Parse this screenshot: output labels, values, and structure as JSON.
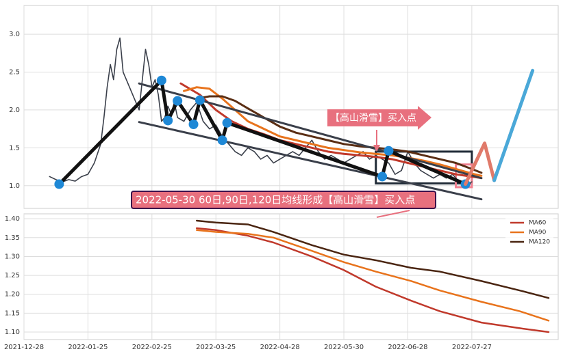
{
  "chart_data": [
    {
      "type": "line",
      "ylim": [
        0.7,
        3.38
      ],
      "yticks": [
        {
          "value": 1.0,
          "label": "1.0"
        },
        {
          "value": 1.5,
          "label": "1.5"
        },
        {
          "value": 2.0,
          "label": "2.0"
        },
        {
          "value": 2.5,
          "label": "2.5"
        },
        {
          "value": 3.0,
          "label": "3.0"
        }
      ],
      "grid": true,
      "series": [
        {
          "color": "#3a3f4a",
          "width": 1.6,
          "x": [
            8,
            10,
            12,
            14,
            16,
            18,
            20,
            22,
            24,
            25,
            26,
            27,
            28,
            29,
            30,
            31,
            32,
            33,
            34,
            36,
            37,
            38,
            39,
            40,
            41,
            42,
            43,
            44,
            45,
            46,
            47,
            48,
            50,
            52,
            54,
            56,
            58,
            60,
            62,
            64,
            66,
            68,
            70,
            72,
            74,
            76,
            78,
            80,
            82,
            84,
            86,
            88,
            90,
            92,
            94,
            96,
            98,
            100,
            102,
            104,
            106,
            108,
            110,
            112,
            114,
            116,
            118,
            120,
            122,
            124,
            126,
            128,
            130,
            132,
            134,
            136,
            138,
            140
          ],
          "values": [
            1.12,
            1.08,
            1.05,
            1.08,
            1.06,
            1.12,
            1.15,
            1.3,
            1.55,
            1.9,
            2.3,
            2.6,
            2.4,
            2.8,
            2.95,
            2.5,
            2.4,
            2.3,
            2.2,
            2.0,
            2.4,
            2.8,
            2.6,
            2.3,
            2.4,
            2.2,
            1.85,
            1.9,
            2.05,
            1.95,
            2.1,
            1.9,
            1.85,
            2.0,
            2.1,
            1.85,
            1.75,
            1.8,
            1.65,
            1.55,
            1.45,
            1.4,
            1.5,
            1.45,
            1.35,
            1.4,
            1.3,
            1.35,
            1.4,
            1.45,
            1.4,
            1.5,
            1.6,
            1.45,
            1.35,
            1.4,
            1.35,
            1.3,
            1.35,
            1.4,
            1.45,
            1.35,
            1.4,
            1.35,
            1.3,
            1.15,
            1.2,
            1.45,
            1.3,
            1.2,
            1.15,
            1.1,
            1.15,
            1.1,
            1.15,
            1.05,
            1.0,
            1.05
          ]
        },
        {
          "color": "#c0392b",
          "width": 3,
          "x": [
            49,
            55,
            60,
            65,
            70,
            75,
            80,
            85,
            90,
            95,
            100,
            105,
            110,
            115,
            120,
            125,
            130,
            135,
            140,
            143
          ],
          "values": [
            2.35,
            2.2,
            2.0,
            1.85,
            1.75,
            1.68,
            1.6,
            1.55,
            1.5,
            1.45,
            1.42,
            1.4,
            1.38,
            1.35,
            1.3,
            1.25,
            1.2,
            1.15,
            1.12,
            1.1
          ]
        },
        {
          "color": "#e8731c",
          "width": 3,
          "x": [
            50,
            54,
            58,
            62,
            66,
            70,
            75,
            80,
            85,
            90,
            95,
            100,
            105,
            110,
            115,
            120,
            125,
            130,
            135,
            140,
            143
          ],
          "values": [
            2.25,
            2.3,
            2.28,
            2.15,
            2.0,
            1.85,
            1.75,
            1.65,
            1.6,
            1.55,
            1.5,
            1.47,
            1.44,
            1.42,
            1.4,
            1.37,
            1.33,
            1.28,
            1.22,
            1.16,
            1.13
          ]
        },
        {
          "color": "#5a2e14",
          "width": 3,
          "x": [
            54,
            58,
            62,
            66,
            70,
            75,
            80,
            85,
            90,
            95,
            100,
            105,
            110,
            115,
            120,
            125,
            130,
            135,
            140,
            143
          ],
          "values": [
            2.15,
            2.18,
            2.18,
            2.12,
            2.02,
            1.9,
            1.78,
            1.7,
            1.65,
            1.6,
            1.55,
            1.52,
            1.5,
            1.48,
            1.45,
            1.4,
            1.35,
            1.3,
            1.22,
            1.17
          ]
        },
        {
          "color": "#3a3f4a",
          "width": 3,
          "x": [
            36,
            143
          ],
          "values": [
            2.35,
            1.1
          ]
        },
        {
          "color": "#3a3f4a",
          "width": 3,
          "x": [
            36,
            143
          ],
          "values": [
            1.84,
            0.82
          ]
        },
        {
          "color": "#111111",
          "width": 5,
          "markers": "#1e88d6",
          "x": [
            11,
            43,
            45,
            48,
            53,
            55,
            62,
            63.5,
            112,
            114,
            138
          ],
          "values": [
            1.02,
            2.39,
            1.86,
            2.12,
            1.81,
            2.13,
            1.6,
            1.83,
            1.12,
            1.46,
            1.02
          ]
        },
        {
          "color": "#e07a6a",
          "width": 5,
          "x": [
            138,
            144,
            147
          ],
          "values": [
            1.02,
            1.56,
            1.07
          ]
        },
        {
          "color": "#4aa8d8",
          "width": 5,
          "x": [
            147,
            159
          ],
          "values": [
            1.07,
            2.52
          ]
        }
      ],
      "boxes": [
        {
          "color": "#1f2a36",
          "x": [
            110,
            140
          ],
          "y": [
            1.03,
            1.45
          ]
        },
        {
          "color": "#f08090",
          "x": [
            135,
            140
          ],
          "y": [
            0.98,
            1.28
          ]
        }
      ],
      "annotations": [
        "【高山滑雪】买入点",
        "2022-05-30 60日,90日,120日均线形成【高山滑雪】买入点"
      ]
    },
    {
      "type": "line",
      "xlim": [
        0,
        167
      ],
      "xticks": [
        {
          "value": 0,
          "label": "2021-12-28"
        },
        {
          "value": 20,
          "label": "2022-01-25"
        },
        {
          "value": 40,
          "label": "2022-02-25"
        },
        {
          "value": 60,
          "label": "2022-03-25"
        },
        {
          "value": 80,
          "label": "2022-04-28"
        },
        {
          "value": 100,
          "label": "2022-05-30"
        },
        {
          "value": 120,
          "label": "2022-06-28"
        },
        {
          "value": 140,
          "label": "2022-07-27"
        }
      ],
      "ylim": [
        1.08,
        1.413
      ],
      "yticks": [
        {
          "value": 1.1,
          "label": "1.10"
        },
        {
          "value": 1.15,
          "label": "1.15"
        },
        {
          "value": 1.2,
          "label": "1.20"
        },
        {
          "value": 1.25,
          "label": "1.25"
        },
        {
          "value": 1.3,
          "label": "1.30"
        },
        {
          "value": 1.35,
          "label": "1.35"
        },
        {
          "value": 1.4,
          "label": "1.40"
        }
      ],
      "grid": true,
      "legend": "upper right",
      "series": [
        {
          "name": "MA60",
          "color": "#c0392b",
          "x": [
            54,
            60,
            70,
            78,
            90,
            100,
            110,
            121,
            130,
            143,
            155,
            164
          ],
          "values": [
            1.375,
            1.37,
            1.355,
            1.337,
            1.3,
            1.264,
            1.22,
            1.183,
            1.155,
            1.125,
            1.11,
            1.1
          ]
        },
        {
          "name": "MA90",
          "color": "#e8731c",
          "x": [
            54,
            60,
            70,
            78,
            90,
            100,
            110,
            121,
            130,
            143,
            155,
            164
          ],
          "values": [
            1.37,
            1.365,
            1.36,
            1.35,
            1.315,
            1.285,
            1.26,
            1.235,
            1.21,
            1.18,
            1.155,
            1.13
          ]
        },
        {
          "name": "MA120",
          "color": "#4a2511",
          "x": [
            54,
            60,
            70,
            78,
            90,
            100,
            110,
            121,
            130,
            143,
            155,
            164
          ],
          "values": [
            1.395,
            1.39,
            1.385,
            1.365,
            1.33,
            1.305,
            1.29,
            1.27,
            1.26,
            1.235,
            1.21,
            1.19
          ]
        }
      ]
    }
  ]
}
